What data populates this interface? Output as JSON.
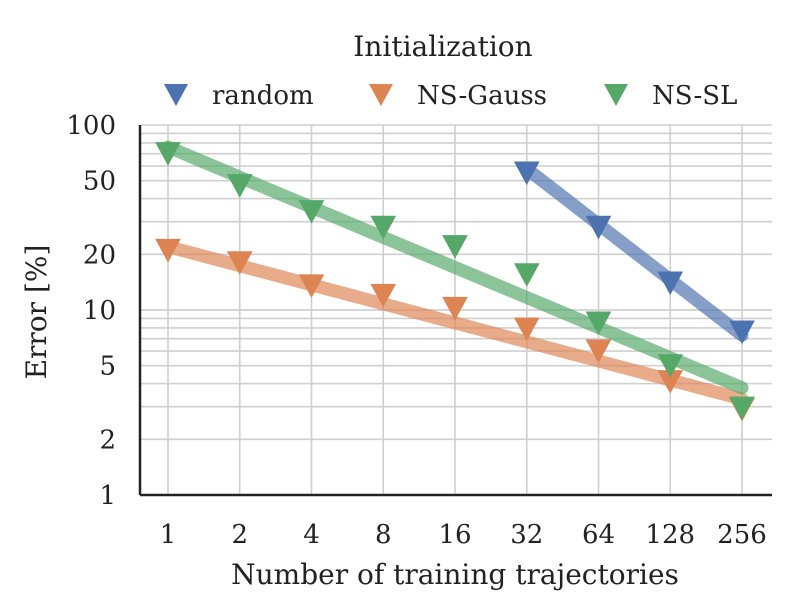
{
  "chart_data": {
    "type": "scatter",
    "title": "",
    "xlabel": "Number of training trajectories",
    "ylabel": "Error [%]",
    "xscale": "log2",
    "yscale": "log10",
    "x": [
      1,
      2,
      4,
      8,
      16,
      32,
      64,
      128,
      256
    ],
    "x_tick_labels": [
      "1",
      "2",
      "4",
      "8",
      "16",
      "32",
      "64",
      "128",
      "256"
    ],
    "y_ticks": [
      1,
      2,
      5,
      10,
      20,
      50,
      100
    ],
    "y_tick_labels": [
      "1",
      "2",
      "5",
      "10",
      "20",
      "50",
      "100"
    ],
    "ylim": [
      1,
      100
    ],
    "grid": true,
    "legend": {
      "title": "Initialization",
      "placement": "top",
      "entries": [
        "random",
        "NS-Gauss",
        "NS-SL"
      ]
    },
    "series": [
      {
        "name": "random",
        "color": "#4C72B0",
        "points": [
          [
            32,
            55
          ],
          [
            64,
            28
          ],
          [
            128,
            14
          ],
          [
            256,
            7.6
          ]
        ],
        "fit": [
          [
            32,
            58
          ],
          [
            256,
            7.3
          ]
        ]
      },
      {
        "name": "NS-Gauss",
        "color": "#DD8452",
        "points": [
          [
            1,
            21
          ],
          [
            2,
            18
          ],
          [
            4,
            13.5
          ],
          [
            8,
            12
          ],
          [
            16,
            10.2
          ],
          [
            32,
            7.9
          ],
          [
            64,
            6.0
          ],
          [
            128,
            4.1
          ],
          [
            256,
            2.9
          ]
        ],
        "fit": [
          [
            1,
            22
          ],
          [
            256,
            3.3
          ]
        ]
      },
      {
        "name": "NS-SL",
        "color": "#55A868",
        "points": [
          [
            1,
            70
          ],
          [
            2,
            47
          ],
          [
            4,
            34
          ],
          [
            8,
            28
          ],
          [
            16,
            22
          ],
          [
            32,
            15.5
          ],
          [
            64,
            8.5
          ],
          [
            128,
            5.0
          ],
          [
            256,
            2.95
          ]
        ],
        "fit": [
          [
            1,
            76
          ],
          [
            256,
            3.8
          ]
        ]
      }
    ]
  }
}
